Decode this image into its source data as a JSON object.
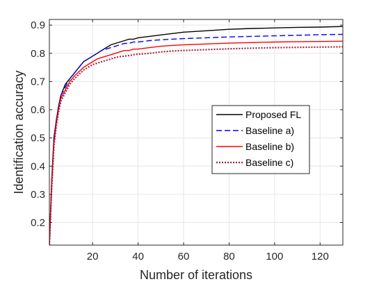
{
  "chart_data": {
    "type": "line",
    "xlabel": "Number of iterations",
    "ylabel": "Identification accuracy",
    "xlim": [
      1,
      130
    ],
    "ylim": [
      0.12,
      0.92
    ],
    "xticks": [
      20,
      40,
      60,
      80,
      100,
      120
    ],
    "yticks": [
      0.2,
      0.3,
      0.4,
      0.5,
      0.6,
      0.7,
      0.8,
      0.9
    ],
    "grid": true,
    "legend_position": "center-right",
    "series": [
      {
        "name": "Proposed FL",
        "color": "#000000",
        "style": "solid",
        "x": [
          1,
          2,
          3,
          4,
          5,
          6,
          8,
          10,
          12,
          14,
          16,
          18,
          20,
          22,
          24,
          26,
          28,
          30,
          32,
          34,
          36,
          38,
          40,
          45,
          50,
          55,
          60,
          70,
          80,
          90,
          100,
          110,
          120,
          130
        ],
        "y": [
          0.12,
          0.35,
          0.5,
          0.56,
          0.61,
          0.65,
          0.69,
          0.71,
          0.73,
          0.75,
          0.77,
          0.78,
          0.79,
          0.8,
          0.81,
          0.82,
          0.83,
          0.835,
          0.84,
          0.845,
          0.85,
          0.85,
          0.855,
          0.86,
          0.865,
          0.87,
          0.875,
          0.88,
          0.885,
          0.888,
          0.89,
          0.892,
          0.893,
          0.895
        ]
      },
      {
        "name": "Baseline a)",
        "color": "#0000ff",
        "style": "dashed",
        "x": [
          1,
          2,
          3,
          4,
          5,
          6,
          8,
          10,
          12,
          14,
          16,
          18,
          20,
          22,
          24,
          26,
          28,
          30,
          32,
          34,
          36,
          38,
          40,
          45,
          50,
          55,
          60,
          70,
          80,
          90,
          100,
          110,
          120,
          130
        ],
        "y": [
          0.12,
          0.34,
          0.49,
          0.56,
          0.61,
          0.65,
          0.68,
          0.71,
          0.73,
          0.75,
          0.77,
          0.78,
          0.79,
          0.8,
          0.81,
          0.815,
          0.82,
          0.825,
          0.83,
          0.835,
          0.835,
          0.84,
          0.84,
          0.845,
          0.848,
          0.85,
          0.852,
          0.855,
          0.858,
          0.86,
          0.862,
          0.864,
          0.866,
          0.867
        ]
      },
      {
        "name": "Baseline b)",
        "color": "#ff0000",
        "style": "solid",
        "x": [
          1,
          2,
          3,
          4,
          5,
          6,
          8,
          10,
          12,
          14,
          16,
          18,
          20,
          22,
          24,
          26,
          28,
          30,
          32,
          34,
          36,
          38,
          40,
          45,
          50,
          55,
          60,
          70,
          80,
          90,
          100,
          110,
          120,
          130
        ],
        "y": [
          0.12,
          0.33,
          0.48,
          0.55,
          0.6,
          0.64,
          0.67,
          0.7,
          0.72,
          0.735,
          0.75,
          0.76,
          0.77,
          0.78,
          0.785,
          0.79,
          0.795,
          0.8,
          0.805,
          0.81,
          0.81,
          0.815,
          0.815,
          0.82,
          0.825,
          0.828,
          0.83,
          0.833,
          0.836,
          0.838,
          0.84,
          0.841,
          0.842,
          0.843
        ]
      },
      {
        "name": "Baseline c)",
        "color": "#a0203a",
        "style": "dotted",
        "x": [
          1,
          2,
          3,
          4,
          5,
          6,
          8,
          10,
          12,
          14,
          16,
          18,
          20,
          22,
          24,
          26,
          28,
          30,
          32,
          34,
          36,
          38,
          40,
          45,
          50,
          55,
          60,
          70,
          80,
          90,
          100,
          110,
          120,
          130
        ],
        "y": [
          0.12,
          0.32,
          0.47,
          0.54,
          0.59,
          0.63,
          0.66,
          0.69,
          0.71,
          0.725,
          0.74,
          0.75,
          0.76,
          0.765,
          0.77,
          0.775,
          0.78,
          0.785,
          0.788,
          0.79,
          0.792,
          0.795,
          0.797,
          0.8,
          0.805,
          0.808,
          0.81,
          0.813,
          0.816,
          0.818,
          0.82,
          0.821,
          0.822,
          0.823
        ]
      }
    ]
  }
}
